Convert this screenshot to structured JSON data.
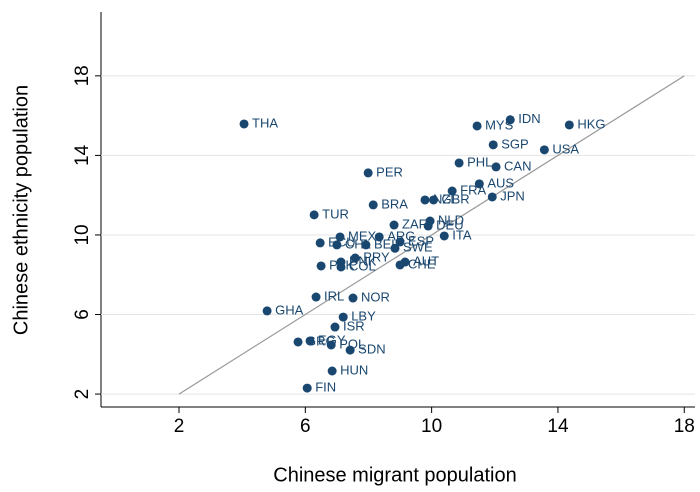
{
  "chart_data": {
    "type": "scatter",
    "x_label": "Chinese migrant population",
    "y_label": "Chinese ethnicity population",
    "color": "#1a476f",
    "labels": [
      "THA",
      "MYS",
      "IDN",
      "HKG",
      "SGP",
      "USA",
      "PHL",
      "CAN",
      "PER",
      "AUS",
      "FRA",
      "JPN",
      "NZL",
      "GBR",
      "BRA",
      "TUR",
      "NLD",
      "ZAF",
      "DEU",
      "ITA",
      "MEX",
      "ARG",
      "ECU",
      "CHL",
      "BEL",
      "ESP",
      "SWE",
      "PRY",
      "DNK",
      "AUT",
      "CHE",
      "PAK",
      "COL",
      "IRL",
      "NOR",
      "GHA",
      "LBY",
      "ISR",
      "EGY",
      "GRC",
      "POL",
      "SDN",
      "HUN",
      "FIN"
    ],
    "x": [
      4.06,
      11.44,
      12.49,
      14.36,
      11.95,
      13.57,
      10.87,
      12.04,
      7.99,
      11.51,
      10.65,
      11.92,
      9.79,
      10.06,
      8.15,
      6.28,
      9.95,
      8.81,
      9.89,
      10.4,
      7.1,
      8.34,
      6.47,
      7.0,
      7.92,
      9.0,
      8.84,
      7.58,
      7.13,
      9.16,
      9.0,
      6.5,
      7.13,
      6.34,
      7.51,
      4.79,
      7.2,
      6.94,
      6.15,
      5.77,
      6.82,
      7.42,
      6.85,
      6.06
    ],
    "values": [
      15.58,
      15.48,
      15.79,
      15.53,
      14.53,
      14.28,
      13.62,
      13.42,
      13.12,
      12.57,
      12.21,
      11.91,
      11.76,
      11.76,
      11.51,
      11.01,
      10.7,
      10.5,
      10.45,
      9.95,
      9.9,
      9.9,
      9.6,
      9.5,
      9.5,
      9.65,
      9.33,
      8.84,
      8.64,
      8.64,
      8.49,
      8.44,
      8.39,
      6.88,
      6.83,
      6.18,
      5.87,
      5.37,
      4.67,
      4.62,
      4.47,
      4.21,
      3.16,
      2.3
    ],
    "fit_line": {
      "x": [
        2,
        18
      ],
      "y": [
        2,
        18
      ],
      "color": "#999999"
    },
    "xlim": [
      -0.47,
      18.34
    ],
    "ylim": [
      1.35,
      21.21
    ],
    "xticks": [
      2,
      6,
      10,
      14,
      18
    ],
    "yticks": [
      2,
      6,
      10,
      14,
      18
    ]
  }
}
